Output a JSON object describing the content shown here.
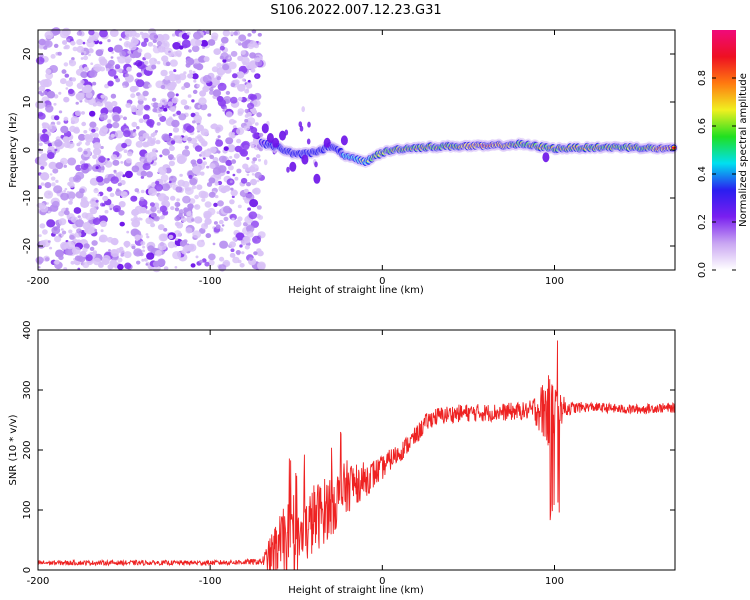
{
  "figure": {
    "title": "S106.2022.007.12.23.G31"
  },
  "chart_data": [
    {
      "type": "heatmap",
      "xlabel": "Height of straight line (km)",
      "ylabel": "Frequency (Hz)",
      "xlim": [
        -200,
        170
      ],
      "ylim": [
        -25,
        25
      ],
      "x_ticks": [
        -200,
        -100,
        0,
        100
      ],
      "y_ticks": [
        -20,
        -10,
        0,
        10,
        20
      ],
      "colorbar": {
        "label": "Normalized spectral amplitude",
        "range": [
          0.0,
          1.0
        ],
        "ticks": [
          0.0,
          0.2,
          0.4,
          0.6,
          0.8
        ],
        "colormap": [
          "#ffffff",
          "#c9a6f2",
          "#7a1ff0",
          "#2a1ef0",
          "#00e0f0",
          "#20e020",
          "#f0f020",
          "#ff7a10",
          "#ee1022",
          "#f00a7a"
        ]
      },
      "noise_region_x": [
        -200,
        -70
      ],
      "ridge": {
        "x": [
          -70,
          -60,
          -50,
          -40,
          -30,
          -20,
          -10,
          0,
          10,
          20,
          40,
          60,
          80,
          100,
          120,
          140,
          170
        ],
        "y": [
          1.5,
          0.5,
          -1.0,
          -0.5,
          0.8,
          -1.5,
          -2.5,
          -0.5,
          0.2,
          0.5,
          0.8,
          0.8,
          1.2,
          0.3,
          0.5,
          0.6,
          0.2
        ],
        "amp": [
          0.35,
          0.45,
          0.4,
          0.4,
          0.45,
          0.55,
          0.65,
          0.7,
          0.75,
          0.75,
          0.8,
          0.85,
          0.8,
          0.75,
          0.8,
          0.7,
          0.9
        ]
      }
    },
    {
      "type": "line",
      "xlabel": "Height of straight line (km)",
      "ylabel": "SNR (10 * v/v)",
      "xlim": [
        -200,
        170
      ],
      "ylim": [
        0,
        400
      ],
      "x_ticks": [
        -200,
        -100,
        0,
        100
      ],
      "y_ticks": [
        0,
        100,
        200,
        300,
        400
      ],
      "series": [
        {
          "color": "#ee2222",
          "x": [
            -200,
            -150,
            -100,
            -70,
            -62,
            -55,
            -50,
            -45,
            -40,
            -35,
            -30,
            -25,
            -20,
            -15,
            -10,
            -5,
            0,
            5,
            10,
            15,
            20,
            25,
            30,
            40,
            50,
            60,
            70,
            80,
            85,
            90,
            95,
            100,
            105,
            110,
            120,
            130,
            140,
            150,
            160,
            170
          ],
          "y": [
            12,
            12,
            12,
            14,
            30,
            55,
            40,
            60,
            85,
            95,
            110,
            120,
            140,
            145,
            150,
            160,
            170,
            185,
            195,
            210,
            225,
            245,
            255,
            260,
            262,
            262,
            263,
            265,
            265,
            268,
            265,
            265,
            270,
            270,
            272,
            270,
            268,
            268,
            270,
            270
          ],
          "noise": [
            4,
            4,
            4,
            5,
            50,
            60,
            50,
            55,
            60,
            55,
            55,
            50,
            45,
            35,
            30,
            25,
            20,
            18,
            16,
            16,
            16,
            15,
            15,
            15,
            15,
            15,
            15,
            15,
            15,
            30,
            60,
            60,
            20,
            10,
            8,
            8,
            8,
            8,
            8,
            8
          ]
        }
      ]
    }
  ]
}
